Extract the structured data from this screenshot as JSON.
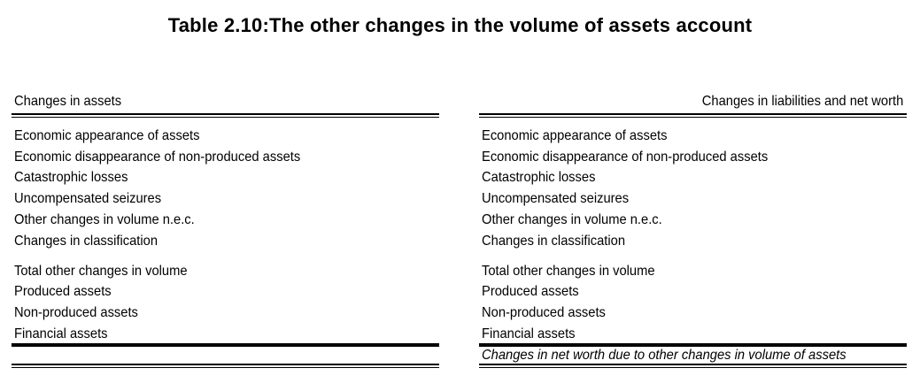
{
  "title": "Table 2.10:The other changes in the volume of assets account",
  "left": {
    "header": "Changes in assets",
    "items": [
      "Economic appearance of assets",
      "Economic disappearance of non-produced assets",
      "Catastrophic losses",
      "Uncompensated seizures",
      "Other changes in volume n.e.c.",
      "Changes in classification",
      "Total other changes in volume",
      "Produced assets",
      "Non-produced assets",
      "Financial assets"
    ]
  },
  "right": {
    "header": "Changes in liabilities and net worth",
    "items": [
      "Economic appearance of assets",
      "Economic disappearance of non-produced assets",
      "Catastrophic losses",
      "Uncompensated seizures",
      "Other changes in volume n.e.c.",
      "Changes in classification",
      "Total other changes in volume",
      "Produced assets",
      "Non-produced assets",
      "Financial assets"
    ],
    "footer": "Changes in net worth due to other changes in volume of assets"
  }
}
